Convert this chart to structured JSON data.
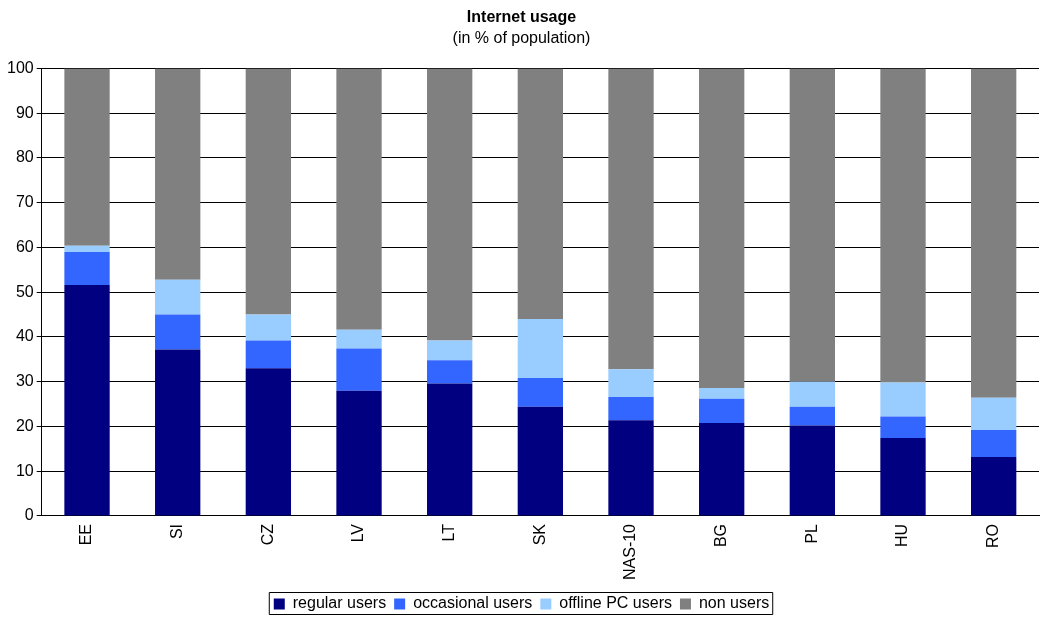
{
  "chart_data": {
    "type": "bar",
    "title": "Internet usage",
    "subtitle": "(in % of population)",
    "stacked": true,
    "categories": [
      "EE",
      "SI",
      "CZ",
      "LV",
      "LT",
      "SK",
      "NAS-10",
      "BG",
      "PL",
      "HU",
      "RO"
    ],
    "series": [
      {
        "name": "regular users",
        "color": "#000080",
        "values": [
          51.6,
          37.2,
          33,
          28,
          29.6,
          24.4,
          21.4,
          20.8,
          20.2,
          17.4,
          13.2
        ]
      },
      {
        "name": "occasional users",
        "color": "#3366ff",
        "values": [
          7.4,
          7.8,
          6.2,
          9.4,
          5.2,
          6.4,
          5.2,
          5.4,
          4.2,
          4.8,
          6
        ]
      },
      {
        "name": "offline PC users",
        "color": "#99ccff",
        "values": [
          1.4,
          7.8,
          5.8,
          4.2,
          4.4,
          13.2,
          6.2,
          2.4,
          5.6,
          7.6,
          7.2
        ]
      },
      {
        "name": "non users",
        "color": "#808080",
        "values": [
          39.6,
          47.2,
          55,
          58.4,
          60.8,
          56,
          67.2,
          71.4,
          70,
          70.2,
          73.6
        ]
      }
    ],
    "ylim": [
      0,
      100
    ],
    "yticks": [
      0,
      10,
      20,
      30,
      40,
      50,
      60,
      70,
      80,
      90,
      100
    ],
    "grid": "y",
    "legend": "bottom"
  }
}
